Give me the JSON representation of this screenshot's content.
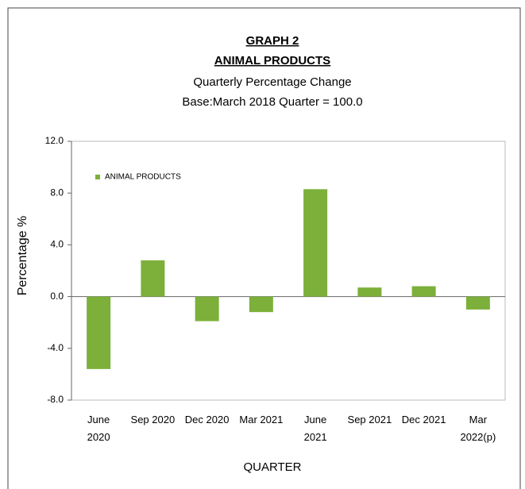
{
  "chart_data": {
    "type": "bar",
    "title": "GRAPH 2",
    "title_2": "ANIMAL PRODUCTS",
    "subtitle": "Quarterly Percentage Change",
    "subtitle_2": "Base:March 2018 Quarter = 100.0",
    "y_label": "Percentage %",
    "x_label": "QUARTER",
    "categories": [
      "June 2020",
      "Sep 2020",
      "Dec 2020",
      "Mar 2021",
      "June 2021",
      "Sep 2021",
      "Dec 2021",
      "Mar 2022(p)"
    ],
    "series": [
      {
        "name": "ANIMAL PRODUCTS",
        "color": "#7cb03a",
        "values": [
          -5.6,
          2.8,
          -1.9,
          -1.2,
          8.3,
          0.7,
          0.8,
          -1.0
        ]
      }
    ],
    "ylim": [
      -8,
      12
    ],
    "yticks": [
      {
        "value": -8,
        "label": "-8.0"
      },
      {
        "value": -4,
        "label": "-4.0"
      },
      {
        "value": 0,
        "label": "0.0"
      },
      {
        "value": 4,
        "label": "4.0"
      },
      {
        "value": 8,
        "label": "8.0"
      },
      {
        "value": 12,
        "label": "12.0"
      }
    ],
    "grid": false,
    "legend": "upper left"
  }
}
